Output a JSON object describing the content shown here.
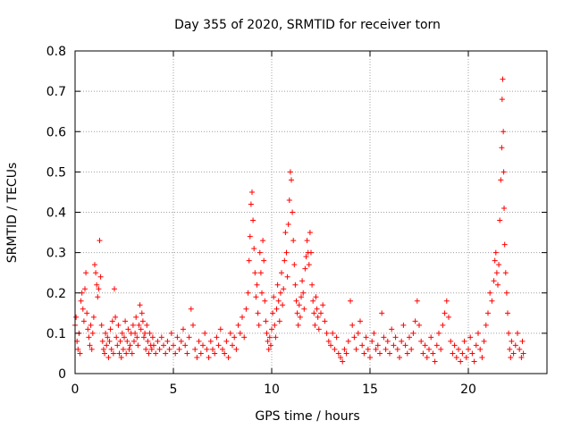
{
  "chart_data": {
    "type": "scatter",
    "title": "Day 355 of 2020, SRMTID for receiver torn",
    "xlabel": "GPS time / hours",
    "ylabel": "SRMTID / TECUs",
    "xlim": [
      0,
      24
    ],
    "ylim": [
      0,
      0.8
    ],
    "x_ticks": [
      0,
      5,
      10,
      15,
      20
    ],
    "x_tick_labels": [
      "0",
      "5",
      "10",
      "15",
      "20"
    ],
    "y_ticks": [
      0,
      0.1,
      0.2,
      0.3,
      0.4,
      0.5,
      0.6,
      0.7,
      0.8
    ],
    "y_tick_labels": [
      "0",
      "0.1",
      "0.2",
      "0.3",
      "0.4",
      "0.5",
      "0.6",
      "0.7",
      "0.8"
    ],
    "grid": true,
    "marker": "+",
    "marker_color": "#ff0000",
    "x_range_covered": [
      0,
      22.8
    ],
    "series": [
      {
        "name": "SRMTID",
        "points": [
          [
            0.0,
            0.12
          ],
          [
            0.05,
            0.14
          ],
          [
            0.1,
            0.08
          ],
          [
            0.15,
            0.06
          ],
          [
            0.2,
            0.1
          ],
          [
            0.25,
            0.05
          ],
          [
            0.3,
            0.18
          ],
          [
            0.35,
            0.2
          ],
          [
            0.4,
            0.16
          ],
          [
            0.45,
            0.13
          ],
          [
            0.5,
            0.21
          ],
          [
            0.55,
            0.25
          ],
          [
            0.6,
            0.15
          ],
          [
            0.65,
            0.11
          ],
          [
            0.7,
            0.09
          ],
          [
            0.75,
            0.07
          ],
          [
            0.8,
            0.12
          ],
          [
            0.85,
            0.06
          ],
          [
            0.9,
            0.1
          ],
          [
            0.95,
            0.14
          ],
          [
            1.0,
            0.27
          ],
          [
            1.05,
            0.25
          ],
          [
            1.1,
            0.22
          ],
          [
            1.15,
            0.19
          ],
          [
            1.2,
            0.21
          ],
          [
            1.25,
            0.33
          ],
          [
            1.3,
            0.24
          ],
          [
            1.35,
            0.12
          ],
          [
            1.4,
            0.08
          ],
          [
            1.45,
            0.06
          ],
          [
            1.5,
            0.05
          ],
          [
            1.55,
            0.1
          ],
          [
            1.6,
            0.07
          ],
          [
            1.65,
            0.09
          ],
          [
            1.7,
            0.04
          ],
          [
            1.75,
            0.08
          ],
          [
            1.8,
            0.11
          ],
          [
            1.85,
            0.06
          ],
          [
            1.9,
            0.13
          ],
          [
            1.95,
            0.05
          ],
          [
            2.0,
            0.21
          ],
          [
            2.05,
            0.14
          ],
          [
            2.1,
            0.09
          ],
          [
            2.15,
            0.07
          ],
          [
            2.2,
            0.12
          ],
          [
            2.25,
            0.05
          ],
          [
            2.3,
            0.08
          ],
          [
            2.35,
            0.04
          ],
          [
            2.4,
            0.1
          ],
          [
            2.45,
            0.06
          ],
          [
            2.5,
            0.09
          ],
          [
            2.55,
            0.13
          ],
          [
            2.6,
            0.05
          ],
          [
            2.65,
            0.08
          ],
          [
            2.7,
            0.11
          ],
          [
            2.75,
            0.06
          ],
          [
            2.8,
            0.07
          ],
          [
            2.85,
            0.1
          ],
          [
            2.9,
            0.05
          ],
          [
            2.95,
            0.12
          ],
          [
            3.0,
            0.08
          ],
          [
            3.05,
            0.1
          ],
          [
            3.1,
            0.14
          ],
          [
            3.15,
            0.09
          ],
          [
            3.2,
            0.07
          ],
          [
            3.25,
            0.12
          ],
          [
            3.3,
            0.17
          ],
          [
            3.35,
            0.11
          ],
          [
            3.4,
            0.15
          ],
          [
            3.45,
            0.13
          ],
          [
            3.5,
            0.09
          ],
          [
            3.55,
            0.1
          ],
          [
            3.6,
            0.06
          ],
          [
            3.65,
            0.12
          ],
          [
            3.7,
            0.08
          ],
          [
            3.75,
            0.05
          ],
          [
            3.8,
            0.1
          ],
          [
            3.85,
            0.07
          ],
          [
            3.9,
            0.06
          ],
          [
            3.95,
            0.09
          ],
          [
            4.0,
            0.07
          ],
          [
            4.1,
            0.05
          ],
          [
            4.2,
            0.08
          ],
          [
            4.3,
            0.06
          ],
          [
            4.4,
            0.09
          ],
          [
            4.5,
            0.07
          ],
          [
            4.6,
            0.05
          ],
          [
            4.7,
            0.08
          ],
          [
            4.8,
            0.06
          ],
          [
            4.9,
            0.1
          ],
          [
            5.0,
            0.07
          ],
          [
            5.1,
            0.05
          ],
          [
            5.2,
            0.09
          ],
          [
            5.3,
            0.06
          ],
          [
            5.4,
            0.08
          ],
          [
            5.5,
            0.11
          ],
          [
            5.6,
            0.07
          ],
          [
            5.7,
            0.05
          ],
          [
            5.8,
            0.09
          ],
          [
            5.9,
            0.16
          ],
          [
            6.0,
            0.12
          ],
          [
            6.1,
            0.06
          ],
          [
            6.2,
            0.04
          ],
          [
            6.3,
            0.08
          ],
          [
            6.4,
            0.05
          ],
          [
            6.5,
            0.07
          ],
          [
            6.6,
            0.1
          ],
          [
            6.7,
            0.06
          ],
          [
            6.8,
            0.04
          ],
          [
            6.9,
            0.08
          ],
          [
            7.0,
            0.06
          ],
          [
            7.1,
            0.05
          ],
          [
            7.2,
            0.09
          ],
          [
            7.3,
            0.07
          ],
          [
            7.4,
            0.11
          ],
          [
            7.5,
            0.06
          ],
          [
            7.6,
            0.05
          ],
          [
            7.7,
            0.08
          ],
          [
            7.8,
            0.04
          ],
          [
            7.9,
            0.1
          ],
          [
            8.0,
            0.07
          ],
          [
            8.1,
            0.09
          ],
          [
            8.2,
            0.06
          ],
          [
            8.3,
            0.12
          ],
          [
            8.4,
            0.1
          ],
          [
            8.5,
            0.14
          ],
          [
            8.6,
            0.09
          ],
          [
            8.7,
            0.16
          ],
          [
            8.8,
            0.2
          ],
          [
            8.85,
            0.28
          ],
          [
            8.9,
            0.34
          ],
          [
            8.95,
            0.42
          ],
          [
            9.0,
            0.45
          ],
          [
            9.05,
            0.38
          ],
          [
            9.1,
            0.31
          ],
          [
            9.15,
            0.25
          ],
          [
            9.2,
            0.19
          ],
          [
            9.25,
            0.22
          ],
          [
            9.3,
            0.15
          ],
          [
            9.35,
            0.12
          ],
          [
            9.4,
            0.3
          ],
          [
            9.45,
            0.25
          ],
          [
            9.5,
            0.2
          ],
          [
            9.55,
            0.33
          ],
          [
            9.6,
            0.28
          ],
          [
            9.65,
            0.18
          ],
          [
            9.7,
            0.13
          ],
          [
            9.75,
            0.1
          ],
          [
            9.8,
            0.08
          ],
          [
            9.85,
            0.06
          ],
          [
            9.9,
            0.09
          ],
          [
            9.95,
            0.07
          ],
          [
            10.0,
            0.11
          ],
          [
            10.05,
            0.15
          ],
          [
            10.1,
            0.19
          ],
          [
            10.15,
            0.12
          ],
          [
            10.2,
            0.09
          ],
          [
            10.25,
            0.16
          ],
          [
            10.3,
            0.22
          ],
          [
            10.35,
            0.18
          ],
          [
            10.4,
            0.13
          ],
          [
            10.45,
            0.2
          ],
          [
            10.5,
            0.25
          ],
          [
            10.55,
            0.17
          ],
          [
            10.6,
            0.21
          ],
          [
            10.65,
            0.28
          ],
          [
            10.7,
            0.35
          ],
          [
            10.75,
            0.3
          ],
          [
            10.8,
            0.24
          ],
          [
            10.85,
            0.37
          ],
          [
            10.9,
            0.43
          ],
          [
            10.95,
            0.5
          ],
          [
            11.0,
            0.48
          ],
          [
            11.05,
            0.4
          ],
          [
            11.1,
            0.33
          ],
          [
            11.15,
            0.27
          ],
          [
            11.2,
            0.22
          ],
          [
            11.25,
            0.18
          ],
          [
            11.3,
            0.15
          ],
          [
            11.35,
            0.12
          ],
          [
            11.4,
            0.17
          ],
          [
            11.45,
            0.14
          ],
          [
            11.5,
            0.19
          ],
          [
            11.55,
            0.23
          ],
          [
            11.6,
            0.2
          ],
          [
            11.65,
            0.16
          ],
          [
            11.7,
            0.26
          ],
          [
            11.75,
            0.29
          ],
          [
            11.8,
            0.33
          ],
          [
            11.85,
            0.3
          ],
          [
            11.9,
            0.27
          ],
          [
            11.95,
            0.35
          ],
          [
            12.0,
            0.3
          ],
          [
            12.05,
            0.22
          ],
          [
            12.1,
            0.18
          ],
          [
            12.15,
            0.15
          ],
          [
            12.2,
            0.12
          ],
          [
            12.25,
            0.19
          ],
          [
            12.3,
            0.16
          ],
          [
            12.35,
            0.14
          ],
          [
            12.4,
            0.11
          ],
          [
            12.5,
            0.15
          ],
          [
            12.6,
            0.17
          ],
          [
            12.7,
            0.13
          ],
          [
            12.8,
            0.1
          ],
          [
            12.9,
            0.08
          ],
          [
            13.0,
            0.07
          ],
          [
            13.1,
            0.1
          ],
          [
            13.2,
            0.06
          ],
          [
            13.3,
            0.09
          ],
          [
            13.4,
            0.05
          ],
          [
            13.5,
            0.04
          ],
          [
            13.6,
            0.03
          ],
          [
            13.7,
            0.06
          ],
          [
            13.8,
            0.05
          ],
          [
            13.9,
            0.08
          ],
          [
            14.0,
            0.18
          ],
          [
            14.1,
            0.12
          ],
          [
            14.2,
            0.09
          ],
          [
            14.3,
            0.06
          ],
          [
            14.4,
            0.1
          ],
          [
            14.5,
            0.13
          ],
          [
            14.6,
            0.07
          ],
          [
            14.7,
            0.05
          ],
          [
            14.8,
            0.09
          ],
          [
            14.9,
            0.06
          ],
          [
            15.0,
            0.04
          ],
          [
            15.1,
            0.08
          ],
          [
            15.2,
            0.1
          ],
          [
            15.3,
            0.06
          ],
          [
            15.4,
            0.07
          ],
          [
            15.5,
            0.05
          ],
          [
            15.6,
            0.15
          ],
          [
            15.7,
            0.09
          ],
          [
            15.8,
            0.06
          ],
          [
            15.9,
            0.08
          ],
          [
            16.0,
            0.05
          ],
          [
            16.1,
            0.11
          ],
          [
            16.2,
            0.07
          ],
          [
            16.3,
            0.09
          ],
          [
            16.4,
            0.06
          ],
          [
            16.5,
            0.04
          ],
          [
            16.6,
            0.08
          ],
          [
            16.7,
            0.12
          ],
          [
            16.8,
            0.07
          ],
          [
            16.9,
            0.05
          ],
          [
            17.0,
            0.09
          ],
          [
            17.1,
            0.06
          ],
          [
            17.2,
            0.1
          ],
          [
            17.3,
            0.13
          ],
          [
            17.4,
            0.18
          ],
          [
            17.5,
            0.12
          ],
          [
            17.6,
            0.08
          ],
          [
            17.7,
            0.05
          ],
          [
            17.8,
            0.07
          ],
          [
            17.9,
            0.04
          ],
          [
            18.0,
            0.06
          ],
          [
            18.1,
            0.09
          ],
          [
            18.2,
            0.05
          ],
          [
            18.3,
            0.03
          ],
          [
            18.4,
            0.07
          ],
          [
            18.5,
            0.1
          ],
          [
            18.6,
            0.06
          ],
          [
            18.7,
            0.12
          ],
          [
            18.8,
            0.15
          ],
          [
            18.9,
            0.18
          ],
          [
            19.0,
            0.14
          ],
          [
            19.1,
            0.08
          ],
          [
            19.2,
            0.05
          ],
          [
            19.3,
            0.07
          ],
          [
            19.4,
            0.04
          ],
          [
            19.5,
            0.06
          ],
          [
            19.6,
            0.03
          ],
          [
            19.7,
            0.05
          ],
          [
            19.8,
            0.08
          ],
          [
            19.9,
            0.04
          ],
          [
            20.0,
            0.06
          ],
          [
            20.1,
            0.09
          ],
          [
            20.2,
            0.05
          ],
          [
            20.3,
            0.03
          ],
          [
            20.4,
            0.07
          ],
          [
            20.5,
            0.1
          ],
          [
            20.6,
            0.06
          ],
          [
            20.7,
            0.04
          ],
          [
            20.8,
            0.08
          ],
          [
            20.9,
            0.12
          ],
          [
            21.0,
            0.15
          ],
          [
            21.1,
            0.2
          ],
          [
            21.2,
            0.18
          ],
          [
            21.3,
            0.23
          ],
          [
            21.35,
            0.28
          ],
          [
            21.4,
            0.3
          ],
          [
            21.45,
            0.25
          ],
          [
            21.5,
            0.22
          ],
          [
            21.55,
            0.27
          ],
          [
            21.6,
            0.38
          ],
          [
            21.65,
            0.48
          ],
          [
            21.7,
            0.56
          ],
          [
            21.72,
            0.68
          ],
          [
            21.75,
            0.73
          ],
          [
            21.78,
            0.6
          ],
          [
            21.8,
            0.5
          ],
          [
            21.82,
            0.41
          ],
          [
            21.85,
            0.32
          ],
          [
            21.9,
            0.25
          ],
          [
            21.95,
            0.2
          ],
          [
            22.0,
            0.15
          ],
          [
            22.05,
            0.1
          ],
          [
            22.1,
            0.06
          ],
          [
            22.15,
            0.04
          ],
          [
            22.2,
            0.08
          ],
          [
            22.3,
            0.05
          ],
          [
            22.4,
            0.07
          ],
          [
            22.5,
            0.1
          ],
          [
            22.6,
            0.06
          ],
          [
            22.7,
            0.04
          ],
          [
            22.75,
            0.08
          ],
          [
            22.8,
            0.05
          ]
        ]
      }
    ]
  }
}
